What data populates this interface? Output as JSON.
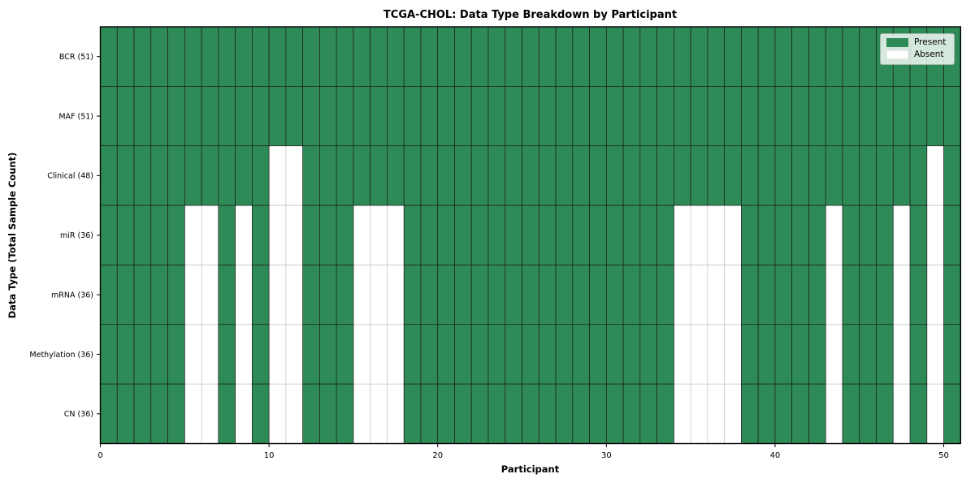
{
  "chart_data": {
    "type": "heatmap",
    "title": "TCGA-CHOL: Data Type Breakdown by Participant",
    "xlabel": "Participant",
    "ylabel": "Data Type (Total Sample Count)",
    "n_participants": 51,
    "x_range": [
      0,
      51
    ],
    "x_ticks": [
      0,
      10,
      20,
      30,
      40,
      50
    ],
    "rows": [
      {
        "label": "BCR (51)",
        "total_present": 51,
        "absent_participants": []
      },
      {
        "label": "MAF (51)",
        "total_present": 51,
        "absent_participants": []
      },
      {
        "label": "Clinical (48)",
        "total_present": 48,
        "absent_participants": [
          10,
          11,
          49
        ]
      },
      {
        "label": "miR (36)",
        "total_present": 36,
        "absent_participants": [
          5,
          6,
          8,
          10,
          11,
          15,
          16,
          17,
          34,
          35,
          36,
          37,
          43,
          47,
          49
        ]
      },
      {
        "label": "mRNA (36)",
        "total_present": 36,
        "absent_participants": [
          5,
          6,
          8,
          10,
          11,
          15,
          16,
          17,
          34,
          35,
          36,
          37,
          43,
          47,
          49
        ]
      },
      {
        "label": "Methylation (36)",
        "total_present": 36,
        "absent_participants": [
          5,
          6,
          8,
          10,
          11,
          15,
          16,
          17,
          34,
          35,
          36,
          37,
          43,
          47,
          49
        ]
      },
      {
        "label": "CN (36)",
        "total_present": 36,
        "absent_participants": [
          5,
          6,
          8,
          10,
          11,
          15,
          16,
          17,
          34,
          35,
          36,
          37,
          43,
          47,
          49
        ]
      }
    ],
    "colors": {
      "present": "#2e8b57",
      "absent": "#ffffff",
      "cell_edge": "#1c1c1c",
      "grid": "#c4c4c4",
      "spine": "#000000"
    },
    "legend_items": [
      {
        "label": "Present",
        "color": "#2e8b57"
      },
      {
        "label": "Absent",
        "color": "#ffffff"
      }
    ],
    "legend_position": "upper right",
    "grid": true
  }
}
